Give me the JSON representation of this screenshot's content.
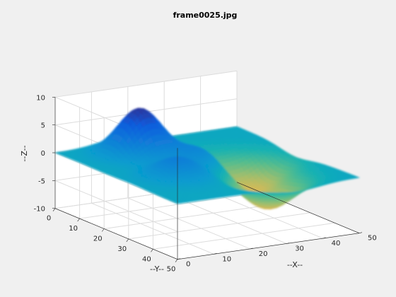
{
  "chart_data": {
    "type": "surface",
    "title": "frame0025.jpg",
    "xlabel": "--X--",
    "ylabel": "--Y--",
    "zlabel": "--Z--",
    "xlim": [
      0,
      50
    ],
    "ylim": [
      0,
      50
    ],
    "zlim": [
      -10,
      10
    ],
    "x_ticks": [
      "0",
      "10",
      "20",
      "30",
      "40",
      "50"
    ],
    "y_ticks": [
      "0",
      "10",
      "20",
      "30",
      "40",
      "50"
    ],
    "z_ticks": [
      "-10",
      "-5",
      "0",
      "5",
      "10"
    ],
    "grid": true,
    "colormap": "parula",
    "colors": {
      "background": "#f0f0f0",
      "axes": "#ffffff",
      "grid": "#dcdcdc",
      "axis_line": "#262626"
    },
    "features": [
      {
        "x": 16,
        "y": 11,
        "z": 8.5,
        "note": "peak"
      },
      {
        "x": 13,
        "y": 31,
        "z": 3.5,
        "note": "peak"
      },
      {
        "x": 26,
        "y": 22,
        "z": 5,
        "note": "peak"
      },
      {
        "x": 39,
        "y": 24,
        "z": -5,
        "note": "trough"
      },
      {
        "x": 33,
        "y": 38,
        "z": -6,
        "note": "trough"
      },
      {
        "x": 30,
        "y": 20,
        "z": -3,
        "note": "trough"
      }
    ]
  }
}
